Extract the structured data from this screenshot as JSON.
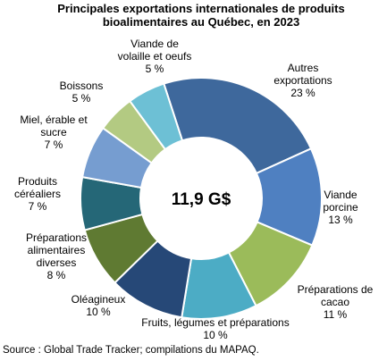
{
  "chart_data": {
    "type": "pie",
    "subtype": "donut",
    "title": "Principales exportations internationales de produits bioalimentaires au Québec, en 2023",
    "title_lines": [
      "Principales exportations internationales de produits",
      "bioalimentaires au Québec, en 2023"
    ],
    "center_label": "11,9 G$",
    "unit": "%",
    "slices": [
      {
        "name": "Autres exportations",
        "label_lines": [
          "Autres",
          "exportations",
          "23 %"
        ],
        "value": 23,
        "color": "#3e689c"
      },
      {
        "name": "Viande porcine",
        "label_lines": [
          "Viande",
          "porcine",
          "13 %"
        ],
        "value": 13,
        "color": "#4f80c1"
      },
      {
        "name": "Préparations de cacao",
        "label_lines": [
          "Préparations de",
          "cacao",
          "11 %"
        ],
        "value": 11,
        "color": "#9bbb5a"
      },
      {
        "name": "Fruits, légumes et préparations",
        "label_lines": [
          "Fruits, légumes et préparations",
          "10 %"
        ],
        "value": 10,
        "color": "#4cacc5"
      },
      {
        "name": "Oléagineux",
        "label_lines": [
          "Oléagineux",
          "10 %"
        ],
        "value": 10,
        "color": "#264877"
      },
      {
        "name": "Préparations alimentaires diverses",
        "label_lines": [
          "Préparations",
          "alimentaires",
          "diverses",
          "8 %"
        ],
        "value": 8,
        "color": "#5f7a32"
      },
      {
        "name": "Produits céréaliers",
        "label_lines": [
          "Produits",
          "céréaliers",
          "7 %"
        ],
        "value": 7,
        "color": "#256777"
      },
      {
        "name": "Miel, érable et sucre",
        "label_lines": [
          "Miel, érable et",
          "sucre",
          "7 %"
        ],
        "value": 7,
        "color": "#769dd0"
      },
      {
        "name": "Boissons",
        "label_lines": [
          "Boissons",
          "5 %"
        ],
        "value": 5,
        "color": "#b3ca82"
      },
      {
        "name": "Viande de volaille et oeufs",
        "label_lines": [
          "Viande de",
          "volaille et oeufs",
          "5 %"
        ],
        "value": 5,
        "color": "#6dc0d5"
      }
    ],
    "legend": "none"
  },
  "source": "Source : Global Trade Tracker; compilations du MAPAQ."
}
